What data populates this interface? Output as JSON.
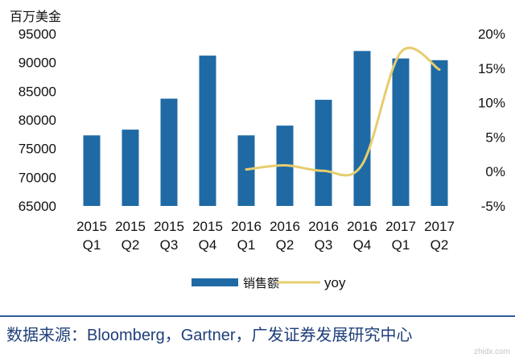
{
  "chart_data": {
    "type": "bar",
    "unit_label": "百万美金",
    "categories": [
      [
        "2015",
        "Q1"
      ],
      [
        "2015",
        "Q2"
      ],
      [
        "2015",
        "Q3"
      ],
      [
        "2015",
        "Q4"
      ],
      [
        "2016",
        "Q1"
      ],
      [
        "2016",
        "Q2"
      ],
      [
        "2016",
        "Q3"
      ],
      [
        "2016",
        "Q4"
      ],
      [
        "2017",
        "Q1"
      ],
      [
        "2017",
        "Q2"
      ]
    ],
    "series": [
      {
        "name": "销售额",
        "type": "bar",
        "axis": "left",
        "color": "#1f6aa5",
        "values": [
          77300,
          78300,
          83700,
          91200,
          77300,
          79000,
          83500,
          92000,
          90700,
          90400
        ]
      },
      {
        "name": "yoy",
        "type": "line",
        "axis": "right",
        "color": "#e6cd6e",
        "values": [
          null,
          null,
          null,
          null,
          0.3,
          0.9,
          0.1,
          1.0,
          17.3,
          14.8
        ]
      }
    ],
    "y_left": {
      "min": 65000,
      "max": 95000,
      "step": 5000,
      "ticks": [
        "65000",
        "70000",
        "75000",
        "80000",
        "85000",
        "90000",
        "95000"
      ]
    },
    "y_right": {
      "min": -5,
      "max": 20,
      "step": 5,
      "ticks": [
        "-5%",
        "0%",
        "5%",
        "10%",
        "15%",
        "20%"
      ]
    },
    "legend_position": "bottom",
    "grid": false
  },
  "source_label": "数据来源：",
  "source_text": "Bloomberg，Gartner，广发证券发展研究中心",
  "watermark": "zhidx.com"
}
